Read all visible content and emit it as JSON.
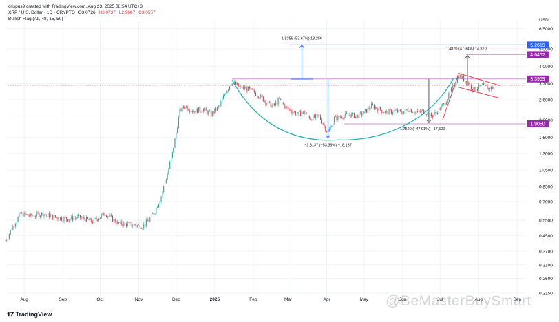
{
  "header": {
    "credit": "crispus9 created with TradingView.com, Aug 23, 2025 08:54 UTC+3",
    "symbol": "XRP / U.S. Dollar · 1D · CRYPTO",
    "ohlc": {
      "o": "O3.0726",
      "h": "H3.0737",
      "l": "L2.9687",
      "c": "C3.0557"
    },
    "indicator": "Bullish Flag (All, 48, 15, 50)"
  },
  "currency": "USD",
  "watermark": "@BeMasterBuySmart",
  "logo_text": "TradingView",
  "colors": {
    "up": "#26a69a",
    "down": "#f23645",
    "cup": "#22b3b8",
    "measure": "#2962ff",
    "flag": "#f23645",
    "level": "#ce93d8",
    "badge": "#9c27b0"
  },
  "chart_data": {
    "type": "candlestick",
    "scale": "log",
    "ylim": [
      0.19,
      7.2
    ],
    "y_ticks": [
      "6.5000",
      "5.0000",
      "4.0000",
      "3.2000",
      "2.6000",
      "2.0000",
      "1.6000",
      "1.3000",
      "1.0500",
      "0.8500",
      "0.7000",
      "0.5500",
      "0.4500",
      "0.3700",
      "0.3100",
      "0.2600",
      "0.2150"
    ],
    "x_labels": [
      {
        "label": "Aug",
        "bold": false,
        "day": 15
      },
      {
        "label": "Sep",
        "bold": false,
        "day": 46
      },
      {
        "label": "Oct",
        "bold": false,
        "day": 76
      },
      {
        "label": "Nov",
        "bold": false,
        "day": 107
      },
      {
        "label": "Dec",
        "bold": false,
        "day": 137
      },
      {
        "label": "2025",
        "bold": true,
        "day": 168
      },
      {
        "label": "Feb",
        "bold": false,
        "day": 199
      },
      {
        "label": "Mar",
        "bold": false,
        "day": 227
      },
      {
        "label": "Apr",
        "bold": false,
        "day": 258
      },
      {
        "label": "May",
        "bold": false,
        "day": 288
      },
      {
        "label": "Jun",
        "bold": false,
        "day": 319
      },
      {
        "label": "Jul",
        "bold": false,
        "day": 349
      },
      {
        "label": "Aug",
        "bold": false,
        "day": 380
      },
      {
        "label": "Sep",
        "bold": false,
        "day": 411
      }
    ],
    "price_path": [
      [
        0,
        0.42
      ],
      [
        6,
        0.51
      ],
      [
        12,
        0.6
      ],
      [
        20,
        0.58
      ],
      [
        30,
        0.6
      ],
      [
        40,
        0.57
      ],
      [
        50,
        0.56
      ],
      [
        60,
        0.57
      ],
      [
        70,
        0.54
      ],
      [
        80,
        0.6
      ],
      [
        90,
        0.53
      ],
      [
        100,
        0.52
      ],
      [
        110,
        0.51
      ],
      [
        115,
        0.55
      ],
      [
        120,
        0.62
      ],
      [
        125,
        0.75
      ],
      [
        130,
        1.0
      ],
      [
        134,
        1.3
      ],
      [
        137,
        1.7
      ],
      [
        140,
        2.25
      ],
      [
        144,
        2.4
      ],
      [
        150,
        2.25
      ],
      [
        158,
        2.3
      ],
      [
        165,
        2.15
      ],
      [
        172,
        2.4
      ],
      [
        177,
        2.9
      ],
      [
        182,
        3.28
      ],
      [
        188,
        3.05
      ],
      [
        194,
        3.0
      ],
      [
        200,
        2.85
      ],
      [
        205,
        2.7
      ],
      [
        210,
        2.5
      ],
      [
        215,
        2.4
      ],
      [
        220,
        2.6
      ],
      [
        225,
        2.35
      ],
      [
        230,
        2.25
      ],
      [
        235,
        2.15
      ],
      [
        240,
        2.2
      ],
      [
        245,
        2.05
      ],
      [
        252,
        2.1
      ],
      [
        256,
        1.85
      ],
      [
        259,
        1.7
      ],
      [
        264,
        2.05
      ],
      [
        270,
        2.1
      ],
      [
        276,
        2.15
      ],
      [
        282,
        2.1
      ],
      [
        288,
        2.2
      ],
      [
        294,
        2.4
      ],
      [
        300,
        2.3
      ],
      [
        306,
        2.2
      ],
      [
        312,
        2.25
      ],
      [
        318,
        2.2
      ],
      [
        324,
        2.3
      ],
      [
        330,
        2.2
      ],
      [
        336,
        2.25
      ],
      [
        342,
        2.1
      ],
      [
        346,
        2.2
      ],
      [
        352,
        2.45
      ],
      [
        356,
        2.75
      ],
      [
        360,
        3.15
      ],
      [
        364,
        3.55
      ],
      [
        368,
        3.4
      ],
      [
        372,
        3.2
      ],
      [
        376,
        2.95
      ],
      [
        380,
        3.05
      ],
      [
        384,
        3.1
      ],
      [
        388,
        3.0
      ],
      [
        392,
        3.05
      ]
    ],
    "levels": [
      {
        "label": "5.2619",
        "value": 5.2619,
        "color": "#2962ff"
      },
      {
        "label": "4.6462",
        "value": 4.6462,
        "color": "#9c27b0"
      },
      {
        "label": "3.3969",
        "value": 3.3969,
        "color": "#9c27b0"
      },
      {
        "label": "1.9050",
        "value": 1.905,
        "color": "#9c27b0"
      }
    ],
    "annotations": [
      {
        "text": "1.8256 (53.67%) 18,256",
        "day": 238,
        "price": 5.65
      },
      {
        "text": "1.4870 (47.34%) 14,870",
        "day": 370,
        "price": 4.95
      },
      {
        "text": "−1.8137 (−53.39%) −18,137",
        "day": 259,
        "price": 1.43
      },
      {
        "text": "−1.7520 (−47.91%) −17,520",
        "day": 334,
        "price": 1.76
      }
    ]
  }
}
